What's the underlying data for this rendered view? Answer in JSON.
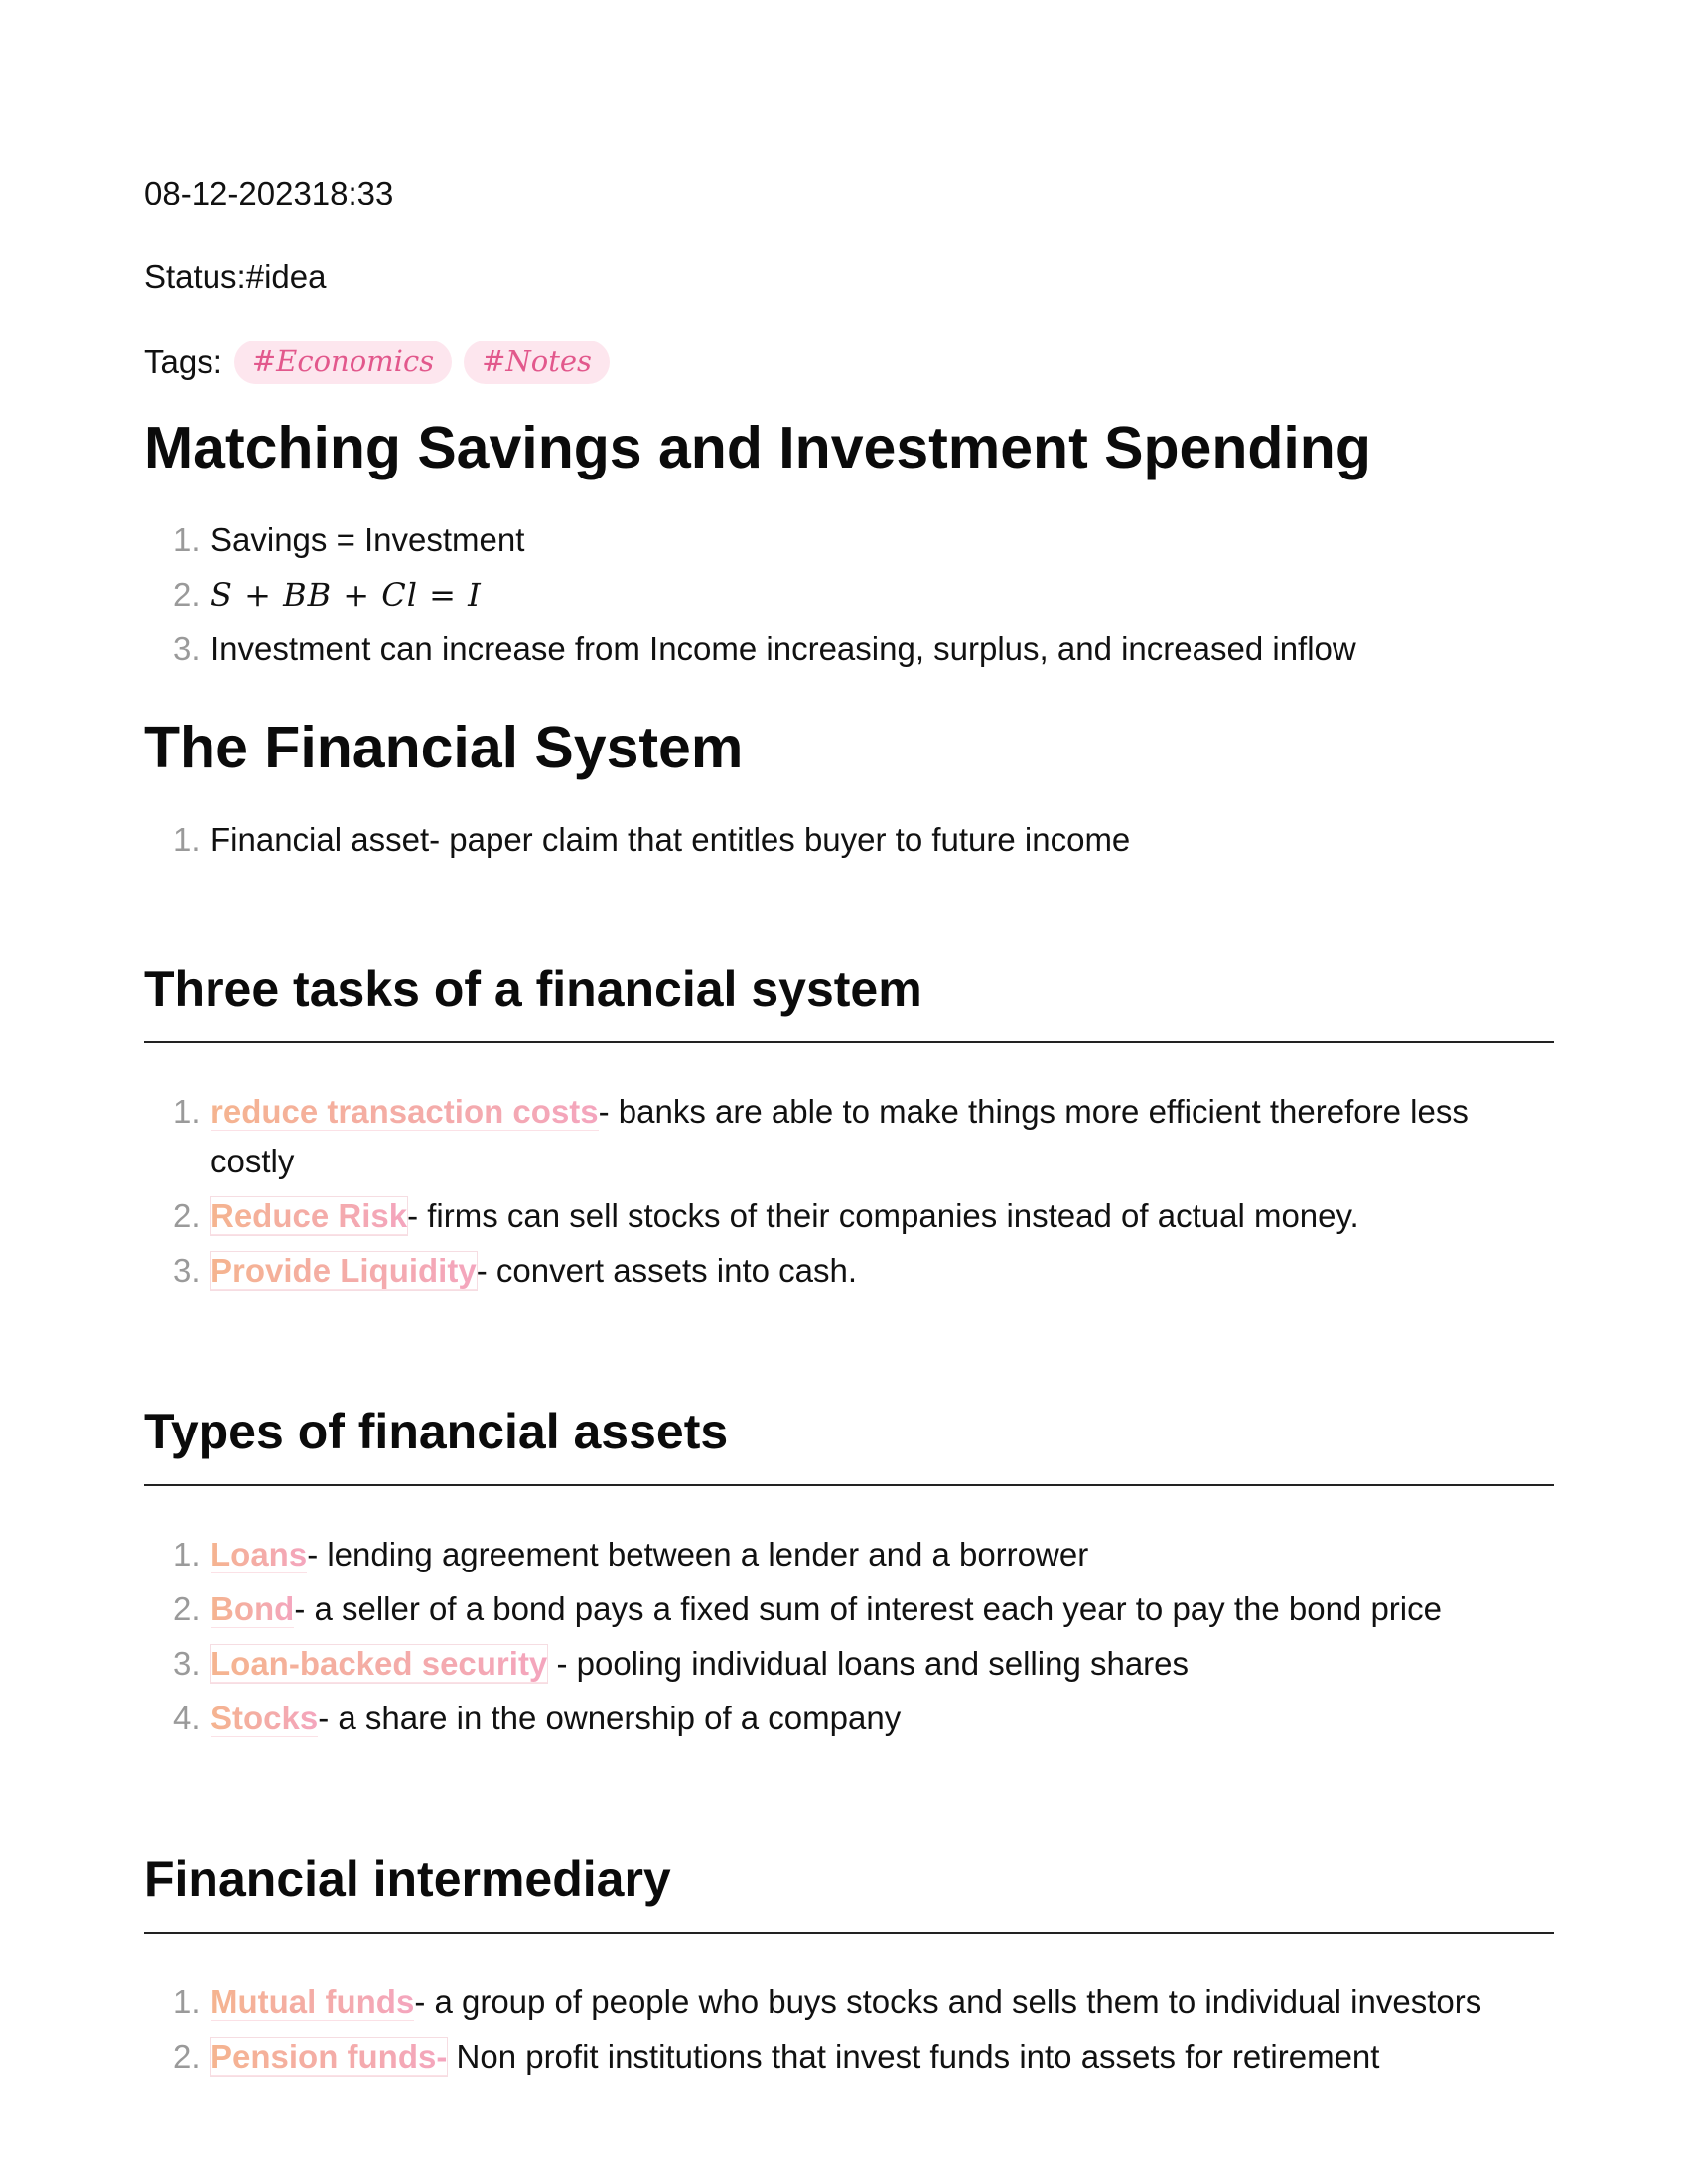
{
  "meta": {
    "datetime": "08-12-202318:33",
    "status": "Status:#idea",
    "tags_label": "Tags:",
    "tags": [
      "#Economics",
      "#Notes"
    ]
  },
  "section1": {
    "heading": "Matching Savings and Investment Spending",
    "items": [
      {
        "num": "1.",
        "text": "Savings = Investment"
      },
      {
        "num": "2.",
        "math": "S + BB + Cl = I"
      },
      {
        "num": "3.",
        "text": "Investment can increase from Income increasing, surplus, and increased inflow"
      }
    ]
  },
  "section2": {
    "heading": "The Financial System",
    "items": [
      {
        "num": "1.",
        "text": "Financial asset- paper claim that entitles buyer to future income"
      }
    ]
  },
  "section3": {
    "heading": "Three tasks of a financial system",
    "items": [
      {
        "num": "1.",
        "term": "reduce transaction costs",
        "desc": "- banks are able to make things more efficient therefore less costly"
      },
      {
        "num": "2.",
        "term": "Reduce Risk",
        "desc": "- firms can sell stocks of their companies instead of actual money."
      },
      {
        "num": "3.",
        "term": "Provide Liquidity",
        "desc": "- convert assets into cash."
      }
    ]
  },
  "section4": {
    "heading": "Types of financial assets",
    "items": [
      {
        "num": "1.",
        "term": "Loans",
        "desc": "- lending agreement between a lender and a borrower"
      },
      {
        "num": "2.",
        "term": "Bond",
        "desc": "- a seller of a bond pays a fixed sum of interest each year to pay the bond price"
      },
      {
        "num": "3.",
        "term": "Loan-backed security",
        "desc": " - pooling individual loans and selling shares"
      },
      {
        "num": "4.",
        "term": "Stocks",
        "desc": "- a share in the ownership of a company"
      }
    ]
  },
  "section5": {
    "heading": "Financial intermediary",
    "items": [
      {
        "num": "1.",
        "term": "Mutual funds",
        "desc": "- a group of people who buys stocks and sells them to individual investors"
      },
      {
        "num": "2.",
        "term": "Pension funds-",
        "desc": " Non profit institutions that invest funds into assets for retirement"
      }
    ]
  }
}
